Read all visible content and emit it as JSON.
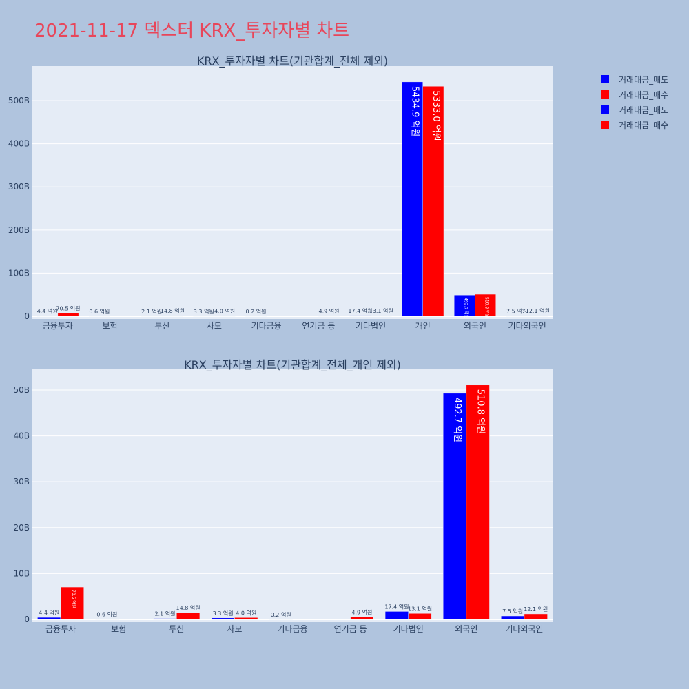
{
  "title": "2021-11-17 덱스터 KRX_투자자별 차트",
  "colors": {
    "sell": "#0000ff",
    "buy": "#ff0000",
    "plot_bg": "#e5ecf6",
    "page_bg": "#b0c4de",
    "title": "#e8465a"
  },
  "legend": [
    {
      "label": "거래대금_매도",
      "color": "#0000ff"
    },
    {
      "label": "거래대금_매수",
      "color": "#ff0000"
    },
    {
      "label": "거래대금_매도",
      "color": "#0000ff"
    },
    {
      "label": "거래대금_매수",
      "color": "#ff0000"
    }
  ],
  "chart_data": [
    {
      "type": "bar",
      "title": "KRX_투자자별 차트(기관합계_전체 제외)",
      "categories": [
        "금융투자",
        "보험",
        "투신",
        "사모",
        "기타금융",
        "연기금 등",
        "기타법인",
        "개인",
        "외국인",
        "기타외국인"
      ],
      "series": [
        {
          "name": "거래대금_매도",
          "values": [
            0.44,
            0.06,
            0.21,
            0.33,
            0.02,
            0,
            1.74,
            543.49,
            49.27,
            0.75
          ],
          "labels": [
            "4.4 억원",
            "0.6 억원",
            "2.1 억원",
            "3.3 억원",
            "0.2 억원",
            "",
            "17.4 억원",
            "5434.9 억원",
            "492.7 억원",
            "7.5 억원"
          ]
        },
        {
          "name": "거래대금_매수",
          "values": [
            7.05,
            0,
            1.48,
            0.4,
            0,
            0.49,
            1.31,
            533.3,
            51.08,
            1.21
          ],
          "labels": [
            "70.5 억원",
            "",
            "14.8 억원",
            "4.0 억원",
            "",
            "4.9 억원",
            "13.1 억원",
            "5333.0 억원",
            "510.8 억원",
            "12.1 억원"
          ]
        }
      ],
      "yticks": [
        "0",
        "100B",
        "200B",
        "300B",
        "400B",
        "500B"
      ],
      "ylim": [
        0,
        580
      ]
    },
    {
      "type": "bar",
      "title": "KRX_투자자별 차트(기관합계_전체_개인 제외)",
      "categories": [
        "금융투자",
        "보험",
        "투신",
        "사모",
        "기타금융",
        "연기금 등",
        "기타법인",
        "외국인",
        "기타외국인"
      ],
      "series": [
        {
          "name": "거래대금_매도",
          "values": [
            0.44,
            0.06,
            0.21,
            0.33,
            0.02,
            0,
            1.74,
            49.27,
            0.75
          ],
          "labels": [
            "4.4 억원",
            "0.6 억원",
            "2.1 억원",
            "3.3 억원",
            "0.2 억원",
            "",
            "17.4 억원",
            "492.7 억원",
            "7.5 억원"
          ]
        },
        {
          "name": "거래대금_매수",
          "values": [
            7.05,
            0,
            1.48,
            0.4,
            0,
            0.49,
            1.31,
            51.08,
            1.21
          ],
          "labels": [
            "70.5 억원",
            "",
            "14.8 억원",
            "4.0 억원",
            "",
            "4.9 억원",
            "13.1 억원",
            "510.8 억원",
            "12.1 억원"
          ]
        }
      ],
      "yticks": [
        "0",
        "10B",
        "20B",
        "30B",
        "40B",
        "50B"
      ],
      "ylim": [
        0,
        54.5
      ]
    }
  ]
}
